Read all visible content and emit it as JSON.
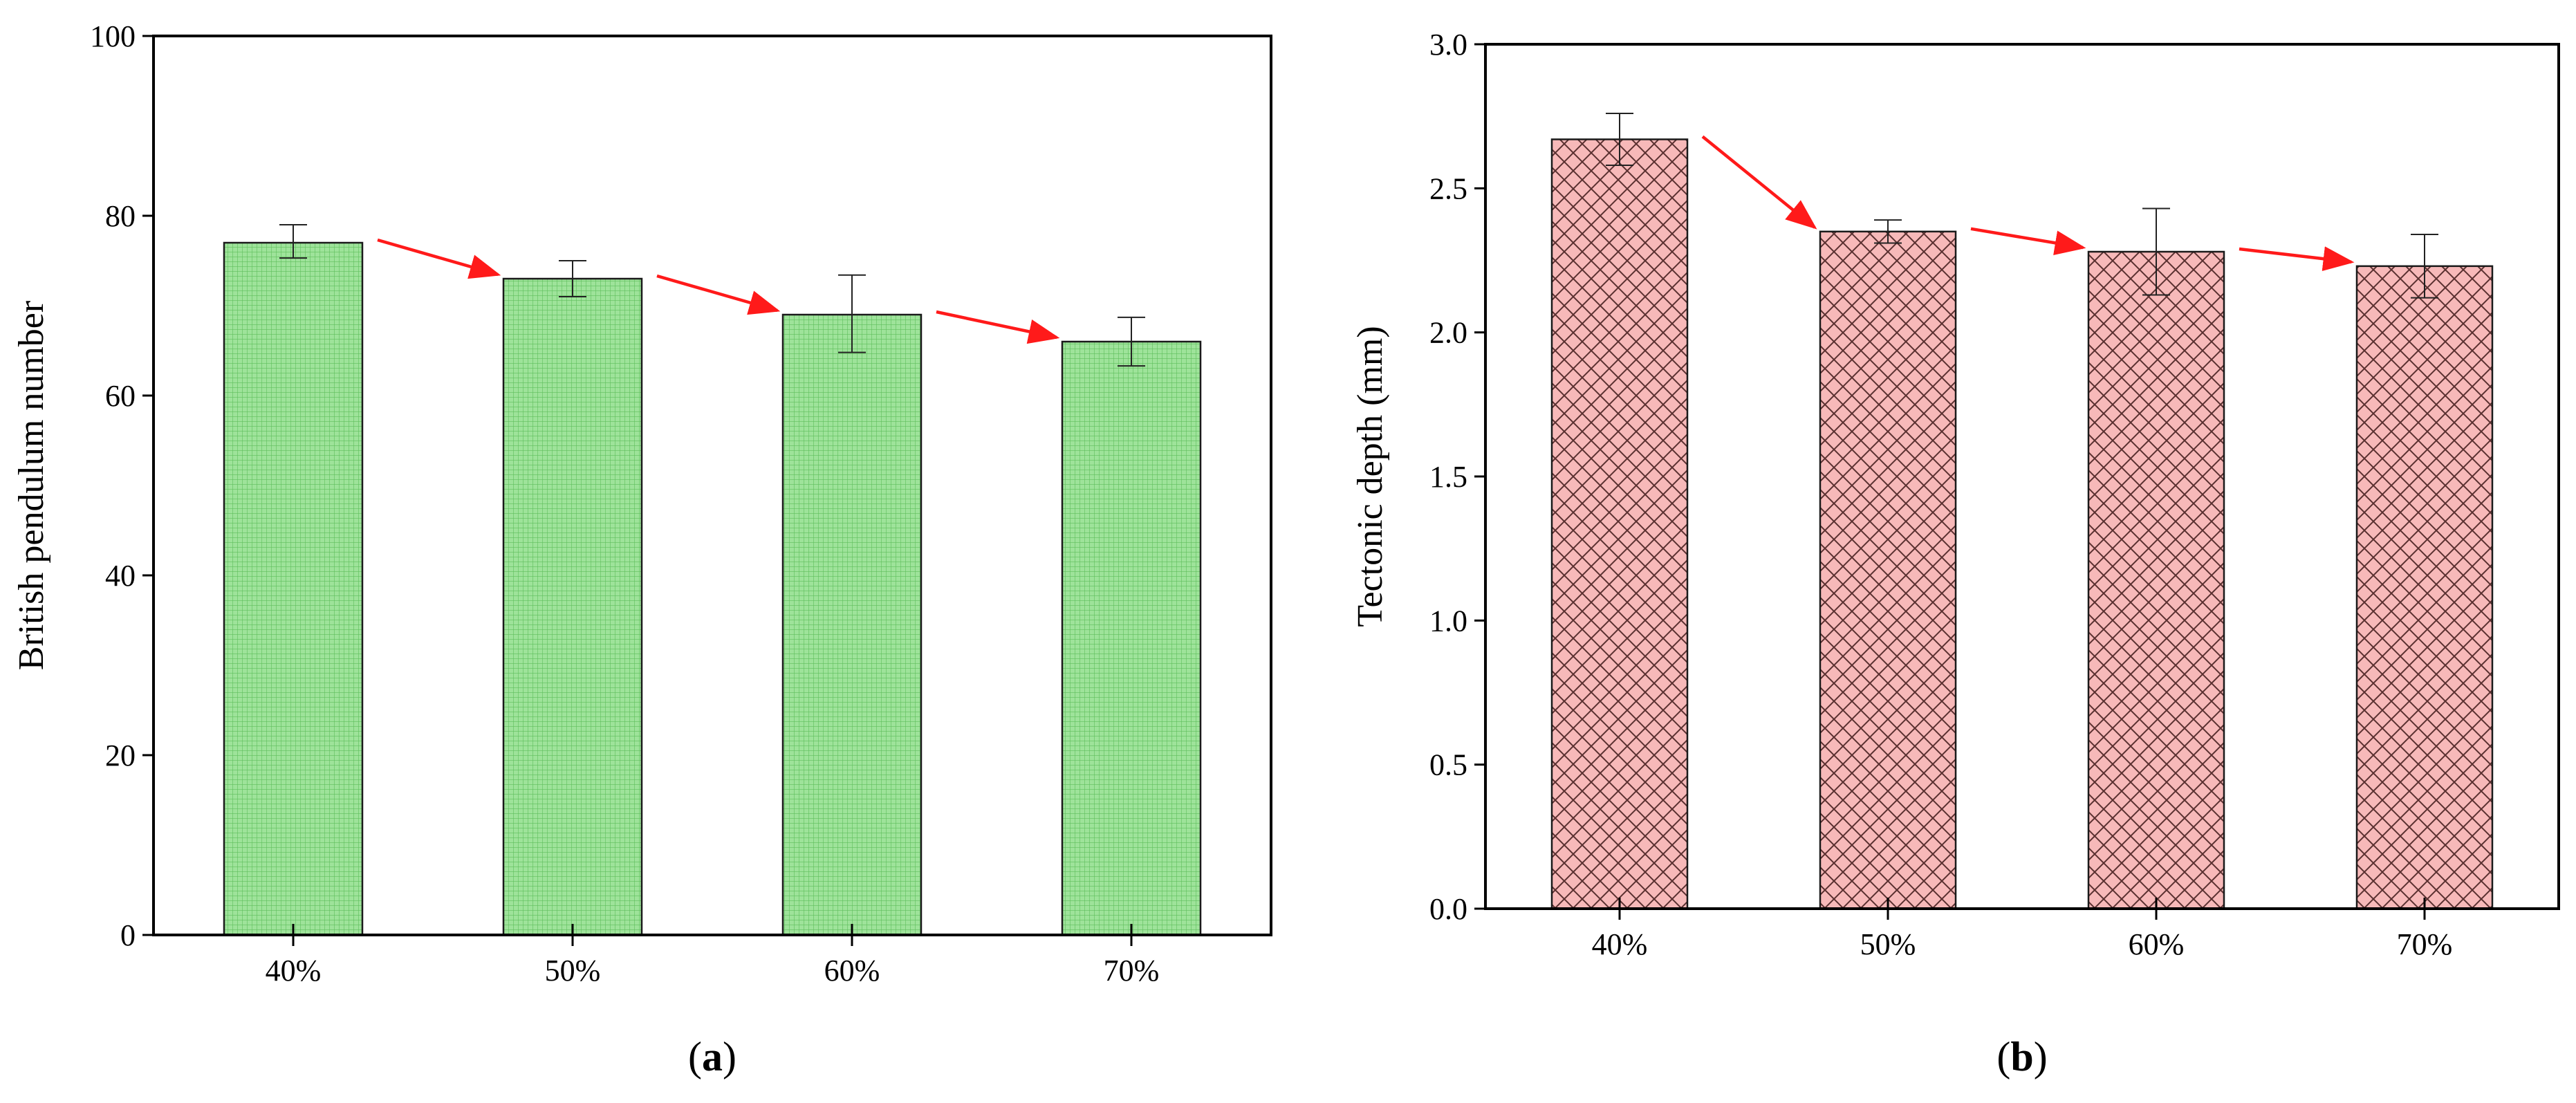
{
  "colors": {
    "bar_a_fill": "#9ee39a",
    "bar_a_grid": "#5fbf5c",
    "bar_b_fill": "#f7b9b9",
    "bar_b_hatch": "#5a3030",
    "arrow": "#ff1a1a",
    "axis": "#000000"
  },
  "chart_data": [
    {
      "type": "bar",
      "panel_label": {
        "open": "(",
        "letter": "a",
        "close": ")"
      },
      "categories": [
        "40%",
        "50%",
        "60%",
        "70%"
      ],
      "values": [
        77,
        73,
        69,
        66
      ],
      "error_low": [
        75.3,
        71.0,
        64.8,
        63.3
      ],
      "error_high": [
        79.0,
        75.0,
        73.4,
        68.7
      ],
      "xlabel": "",
      "ylabel": "British pendulum number",
      "ylim": [
        0,
        100
      ],
      "yticks": [
        0,
        20,
        40,
        60,
        80,
        100
      ],
      "ytick_labels": [
        "0",
        "20",
        "40",
        "60",
        "80",
        "100"
      ],
      "pattern": "fine grid",
      "annotations": "red arrows between consecutive bar tops showing decreasing trend"
    },
    {
      "type": "bar",
      "panel_label": {
        "open": "(",
        "letter": "b",
        "close": ")"
      },
      "categories": [
        "40%",
        "50%",
        "60%",
        "70%"
      ],
      "values": [
        2.67,
        2.35,
        2.28,
        2.23
      ],
      "error_low": [
        2.58,
        2.31,
        2.13,
        2.12
      ],
      "error_high": [
        2.76,
        2.39,
        2.43,
        2.34
      ],
      "xlabel": "",
      "ylabel": "Tectonic depth (mm)",
      "ylim": [
        0,
        3.0
      ],
      "yticks": [
        0,
        0.5,
        1.0,
        1.5,
        2.0,
        2.5,
        3.0
      ],
      "ytick_labels": [
        "0.0",
        "0.5",
        "1.0",
        "1.5",
        "2.0",
        "2.5",
        "3.0"
      ],
      "pattern": "cross hatch",
      "annotations": "red arrows between consecutive bar tops showing decreasing trend"
    }
  ]
}
